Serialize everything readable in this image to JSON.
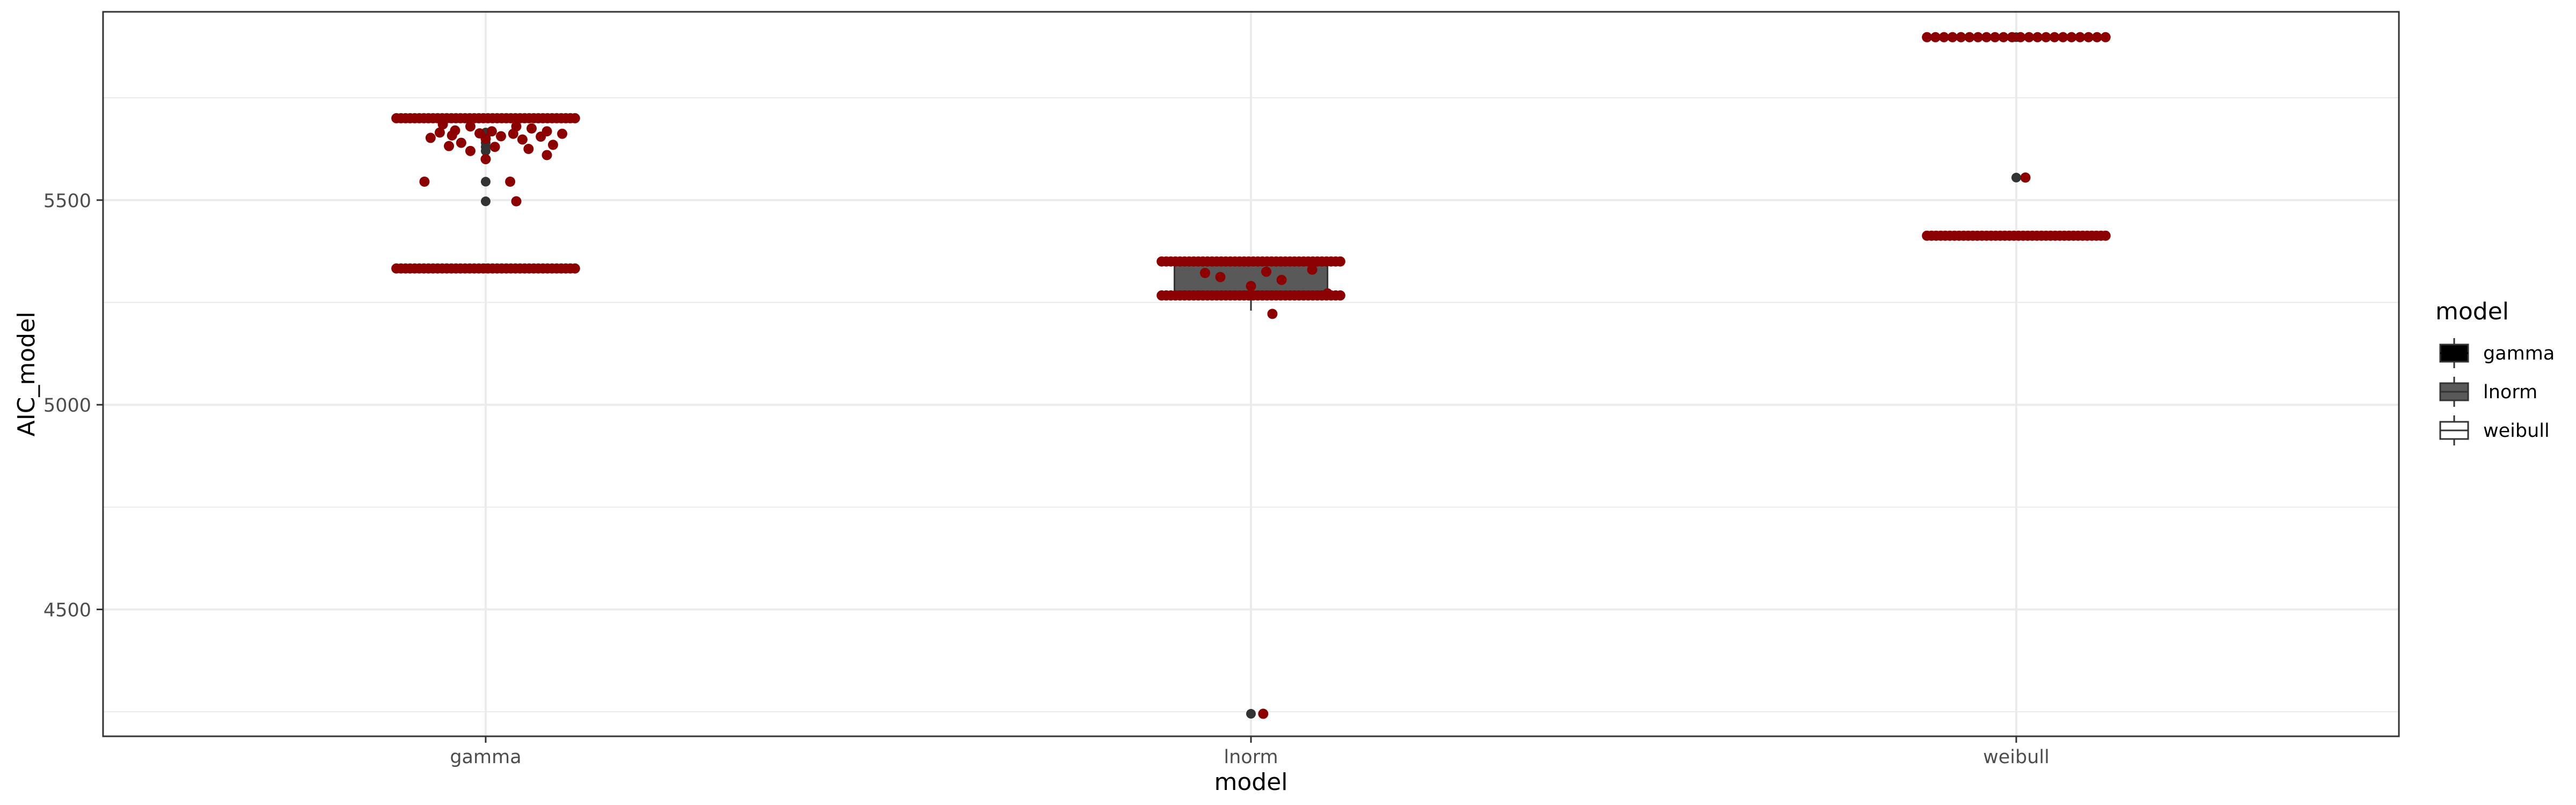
{
  "chart_data": {
    "type": "boxplot-jitter",
    "xlabel": "model",
    "ylabel": "AIC_model",
    "categories": [
      "gamma",
      "lnorm",
      "weibull"
    ],
    "ylim": [
      4190,
      5960
    ],
    "yticks": [
      4500,
      5000,
      5500
    ],
    "grid": true,
    "legend": {
      "title": "model",
      "position": "right",
      "entries": [
        {
          "label": "gamma",
          "fill": "#000000"
        },
        {
          "label": "lnorm",
          "fill": "#595959"
        },
        {
          "label": "weibull",
          "fill": "#ffffff"
        }
      ]
    },
    "colors": {
      "points": "#8B0000",
      "outliers": "#333333",
      "panel_border": "#333333",
      "grid": "#ebebeb"
    },
    "boxes": [
      {
        "category": "gamma",
        "q1": 5700,
        "median": 5700,
        "q3": 5700,
        "whisker_low": 5700,
        "whisker_high": 5700,
        "outliers": [
          5665,
          5655,
          5640,
          5630,
          5620,
          5545,
          5497,
          5333
        ]
      },
      {
        "category": "lnorm",
        "q1": 5267,
        "median": 5275,
        "q3": 5350,
        "whisker_low": 5230,
        "whisker_high": 5350,
        "outliers": [
          4245
        ]
      },
      {
        "category": "weibull",
        "q1": 5413,
        "median": 5413,
        "q3": 5413,
        "whisker_low": 5413,
        "whisker_high": 5413,
        "outliers": [
          5898,
          5555
        ]
      }
    ],
    "points": [
      {
        "category": "gamma",
        "row": 5700,
        "row_count": 40,
        "row_spread": 0.35,
        "extra": [
          [
            -0.14,
            5685
          ],
          [
            -0.05,
            5680
          ],
          [
            0.1,
            5680
          ],
          [
            0.15,
            5675
          ],
          [
            -0.1,
            5670
          ],
          [
            0.02,
            5668
          ],
          [
            0.2,
            5668
          ],
          [
            -0.15,
            5665
          ],
          [
            -0.02,
            5663
          ],
          [
            0.09,
            5662
          ],
          [
            0.25,
            5662
          ],
          [
            -0.11,
            5658
          ],
          [
            0.05,
            5656
          ],
          [
            0.18,
            5655
          ],
          [
            -0.18,
            5652
          ],
          [
            0.0,
            5650
          ],
          [
            0.12,
            5648
          ],
          [
            -0.08,
            5640
          ],
          [
            0.22,
            5635
          ],
          [
            -0.12,
            5632
          ],
          [
            0.03,
            5630
          ],
          [
            0.14,
            5625
          ],
          [
            -0.05,
            5620
          ],
          [
            0.2,
            5610
          ],
          [
            0.0,
            5600
          ],
          [
            -0.2,
            5545
          ],
          [
            0.08,
            5545
          ],
          [
            0.1,
            5497
          ]
        ]
      },
      {
        "category": "gamma",
        "row": 5333,
        "row_count": 40,
        "row_spread": 0.35,
        "extra": []
      },
      {
        "category": "lnorm",
        "row": 5350,
        "row_count": 40,
        "row_spread": 0.35,
        "extra": [
          [
            -0.15,
            5322
          ],
          [
            0.05,
            5325
          ],
          [
            0.2,
            5330
          ],
          [
            -0.1,
            5312
          ],
          [
            0.1,
            5305
          ],
          [
            0.0,
            5290
          ],
          [
            0.25,
            5272
          ],
          [
            0.07,
            5222
          ],
          [
            0.04,
            4245
          ]
        ]
      },
      {
        "category": "lnorm",
        "row": 5267,
        "row_count": 40,
        "row_spread": 0.35,
        "extra": []
      },
      {
        "category": "weibull",
        "row": 5898,
        "row_count": 22,
        "row_spread": 0.35,
        "extra": [
          [
            0.03,
            5555
          ]
        ]
      },
      {
        "category": "weibull",
        "row": 5413,
        "row_count": 40,
        "row_spread": 0.35,
        "extra": []
      }
    ]
  }
}
